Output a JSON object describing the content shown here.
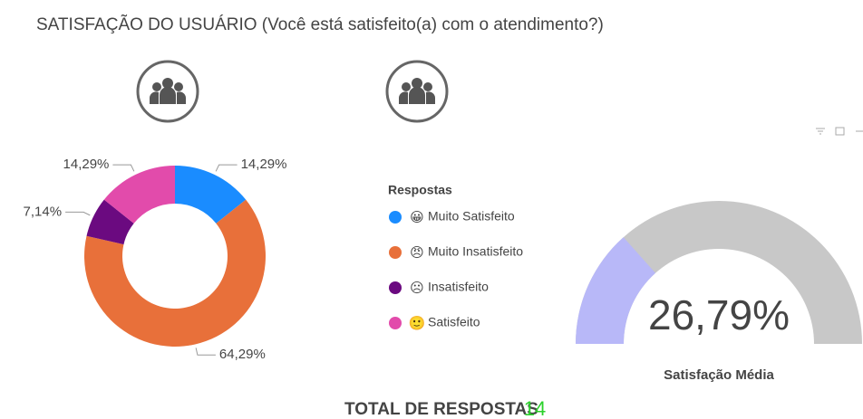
{
  "title": "SATISFAÇÃO DO USUÁRIO (Você está satisfeito(a) com o atendimento?)",
  "chart_data": [
    {
      "type": "donut",
      "legend_title": "Respostas",
      "categories": [
        "Muito Satisfeito",
        "Muito Insatisfeito",
        "Insatisfeito",
        "Satisfeito"
      ],
      "icons": [
        "😀",
        "😠",
        "☹",
        "🙂"
      ],
      "values": [
        14.29,
        64.29,
        7.14,
        14.29
      ],
      "value_labels": [
        "14,29%",
        "64,29%",
        "7,14%",
        "14,29%"
      ],
      "colors": [
        "#1a8cff",
        "#e8703a",
        "#6b0a80",
        "#e24bab"
      ]
    },
    {
      "type": "gauge",
      "value": 26.79,
      "value_label": "26,79%",
      "ylim": [
        0,
        100
      ],
      "label": "Satisfação Média",
      "color": "#b8b8f8",
      "track_color": "#c8c8c8"
    }
  ],
  "total": {
    "label": "TOTAL DE RESPOSTAS",
    "value": 14
  }
}
